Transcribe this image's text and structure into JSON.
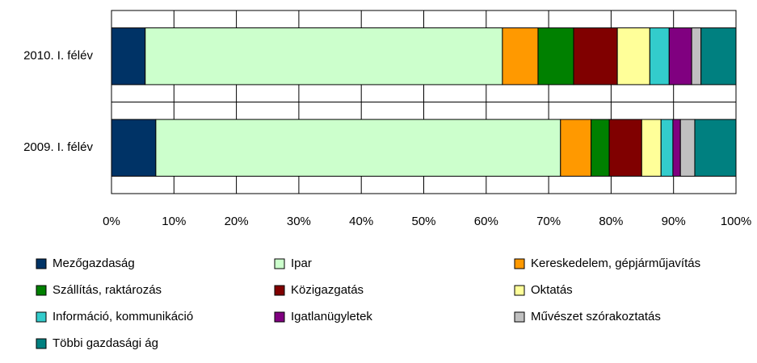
{
  "chart_data": {
    "type": "bar",
    "orientation": "horizontal",
    "stacked": true,
    "categories": [
      "2010. I. félév",
      "2009. I. félév"
    ],
    "series": [
      {
        "name": "Mezőgazdaság",
        "color": "#003366",
        "values": [
          5.4,
          7.1
        ]
      },
      {
        "name": "Ipar",
        "color": "#ccffcc",
        "values": [
          57.2,
          64.8
        ]
      },
      {
        "name": "Kereskedelem, gépjárműjavítás",
        "color": "#ff9900",
        "values": [
          5.7,
          4.9
        ]
      },
      {
        "name": "Szállítás, raktározás",
        "color": "#008000",
        "values": [
          5.7,
          2.9
        ]
      },
      {
        "name": "Közigazgatás",
        "color": "#800000",
        "values": [
          7.0,
          5.2
        ]
      },
      {
        "name": "Oktatás",
        "color": "#ffff99",
        "values": [
          5.2,
          3.1
        ]
      },
      {
        "name": "Információ, kommunikáció",
        "color": "#33cccc",
        "values": [
          3.1,
          1.9
        ]
      },
      {
        "name": "Igatlanügyletek",
        "color": "#800080",
        "values": [
          3.6,
          1.2
        ]
      },
      {
        "name": "Művészet szórakoztatás",
        "color": "#c0c0c0",
        "values": [
          1.5,
          2.3
        ]
      },
      {
        "name": "Többi gazdasági ág",
        "color": "#008080",
        "values": [
          5.6,
          6.6
        ]
      }
    ],
    "xlim": [
      0,
      100
    ],
    "xticks": [
      {
        "value": 0,
        "label": "0%"
      },
      {
        "value": 10,
        "label": "10%"
      },
      {
        "value": 20,
        "label": "20%"
      },
      {
        "value": 30,
        "label": "30%"
      },
      {
        "value": 40,
        "label": "40%"
      },
      {
        "value": 50,
        "label": "50%"
      },
      {
        "value": 60,
        "label": "60%"
      },
      {
        "value": 70,
        "label": "70%"
      },
      {
        "value": 80,
        "label": "80%"
      },
      {
        "value": 90,
        "label": "90%"
      },
      {
        "value": 100,
        "label": "100%"
      }
    ],
    "grid": true
  }
}
